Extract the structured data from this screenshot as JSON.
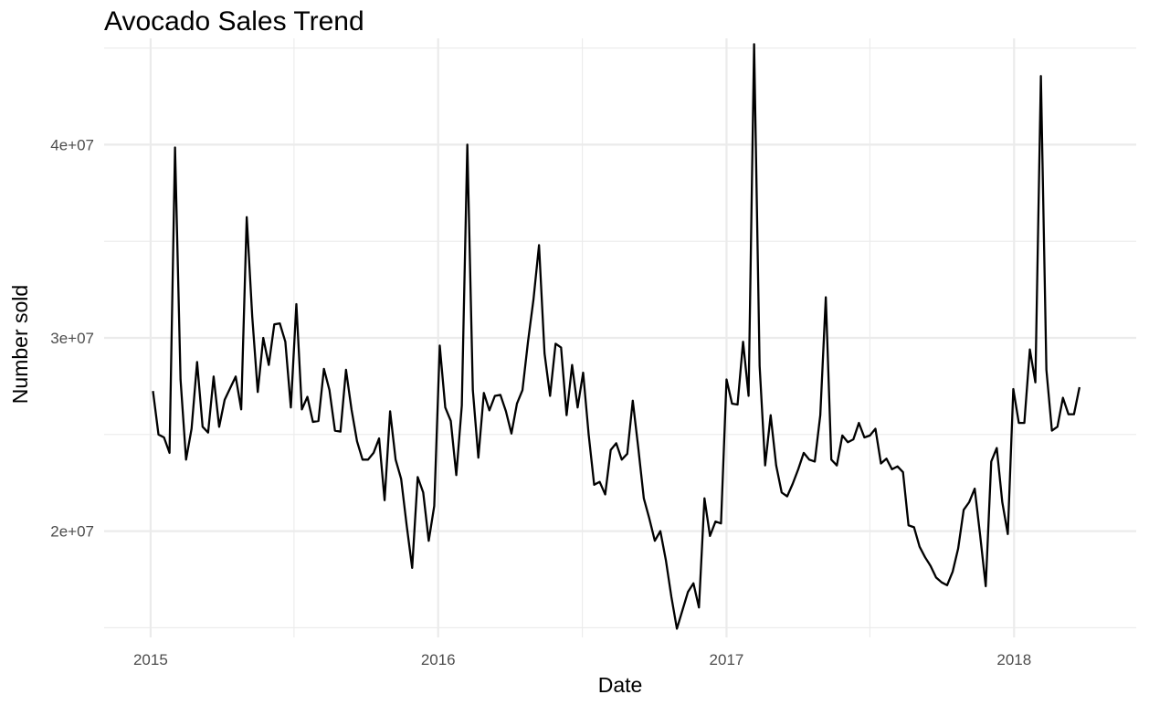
{
  "chart_data": {
    "type": "line",
    "title": "Avocado Sales Trend",
    "xlabel": "Date",
    "ylabel": "Number sold",
    "x_ticks": [
      "2015",
      "2016",
      "2017",
      "2018"
    ],
    "y_ticks": [
      "2e+07",
      "3e+07",
      "4e+07"
    ],
    "ylim": [
      14500000,
      45500000
    ],
    "xlim": [
      "2014-11-03",
      "2018-06-05"
    ],
    "grid": true,
    "line_color": "#000000",
    "grid_color": "#ebebeb",
    "series": [
      {
        "x": [
          "2015-01-04",
          "2015-01-11",
          "2015-01-18",
          "2015-01-25",
          "2015-02-01",
          "2015-02-08",
          "2015-02-15",
          "2015-02-22",
          "2015-03-01",
          "2015-03-08",
          "2015-03-15",
          "2015-03-22",
          "2015-03-29",
          "2015-04-05",
          "2015-04-12",
          "2015-04-19",
          "2015-04-26",
          "2015-05-03",
          "2015-05-10",
          "2015-05-17",
          "2015-05-24",
          "2015-05-31",
          "2015-06-07",
          "2015-06-14",
          "2015-06-21",
          "2015-06-28",
          "2015-07-05",
          "2015-07-12",
          "2015-07-19",
          "2015-07-26",
          "2015-08-02",
          "2015-08-09",
          "2015-08-16",
          "2015-08-23",
          "2015-08-30",
          "2015-09-06",
          "2015-09-13",
          "2015-09-20",
          "2015-09-27",
          "2015-10-04",
          "2015-10-11",
          "2015-10-18",
          "2015-10-25",
          "2015-11-01",
          "2015-11-08",
          "2015-11-15",
          "2015-11-22",
          "2015-11-29",
          "2015-12-06",
          "2015-12-13",
          "2015-12-20",
          "2015-12-27",
          "2016-01-03",
          "2016-01-10",
          "2016-01-17",
          "2016-01-24",
          "2016-01-31",
          "2016-02-07",
          "2016-02-14",
          "2016-02-21",
          "2016-02-28",
          "2016-03-06",
          "2016-03-13",
          "2016-03-20",
          "2016-03-27",
          "2016-04-03",
          "2016-04-10",
          "2016-04-17",
          "2016-04-24",
          "2016-05-01",
          "2016-05-08",
          "2016-05-15",
          "2016-05-22",
          "2016-05-29",
          "2016-06-05",
          "2016-06-12",
          "2016-06-19",
          "2016-06-26",
          "2016-07-03",
          "2016-07-10",
          "2016-07-17",
          "2016-07-24",
          "2016-07-31",
          "2016-08-07",
          "2016-08-14",
          "2016-08-21",
          "2016-08-28",
          "2016-09-04",
          "2016-09-11",
          "2016-09-18",
          "2016-09-25",
          "2016-10-02",
          "2016-10-09",
          "2016-10-16",
          "2016-10-23",
          "2016-10-30",
          "2016-11-06",
          "2016-11-13",
          "2016-11-20",
          "2016-11-27",
          "2016-12-04",
          "2016-12-11",
          "2016-12-18",
          "2016-12-25",
          "2017-01-01",
          "2017-01-08",
          "2017-01-15",
          "2017-01-22",
          "2017-01-29",
          "2017-02-05",
          "2017-02-12",
          "2017-02-19",
          "2017-02-26",
          "2017-03-05",
          "2017-03-12",
          "2017-03-19",
          "2017-03-26",
          "2017-04-02",
          "2017-04-09",
          "2017-04-16",
          "2017-04-23",
          "2017-04-30",
          "2017-05-07",
          "2017-05-14",
          "2017-05-21",
          "2017-05-28",
          "2017-06-04",
          "2017-06-11",
          "2017-06-18",
          "2017-06-25",
          "2017-07-02",
          "2017-07-09",
          "2017-07-16",
          "2017-07-23",
          "2017-07-30",
          "2017-08-06",
          "2017-08-13",
          "2017-08-20",
          "2017-08-27",
          "2017-09-03",
          "2017-09-10",
          "2017-09-17",
          "2017-09-24",
          "2017-10-01",
          "2017-10-08",
          "2017-10-15",
          "2017-10-22",
          "2017-10-29",
          "2017-11-05",
          "2017-11-12",
          "2017-11-19",
          "2017-11-26",
          "2017-12-03",
          "2017-12-10",
          "2017-12-17",
          "2017-12-24",
          "2017-12-31",
          "2018-01-07",
          "2018-01-14",
          "2018-01-21",
          "2018-01-28",
          "2018-02-04",
          "2018-02-11",
          "2018-02-18",
          "2018-02-25",
          "2018-03-04",
          "2018-03-11",
          "2018-03-18",
          "2018-03-25"
        ],
        "y": [
          27250000,
          25000000,
          24850000,
          24050000,
          39850000,
          27850000,
          23700000,
          25300000,
          28750000,
          25400000,
          25100000,
          28000000,
          25400000,
          26800000,
          27400000,
          28000000,
          26300000,
          36250000,
          31100000,
          27200000,
          30000000,
          28600000,
          30700000,
          30750000,
          29800000,
          26400000,
          31750000,
          26300000,
          26950000,
          25650000,
          25700000,
          28400000,
          27300000,
          25200000,
          25150000,
          28350000,
          26300000,
          24650000,
          23700000,
          23700000,
          24050000,
          24800000,
          21600000,
          26200000,
          23700000,
          22700000,
          20300000,
          18100000,
          22800000,
          22000000,
          19500000,
          21300000,
          29600000,
          26400000,
          25700000,
          22900000,
          26500000,
          40000000,
          27300000,
          23800000,
          27150000,
          26250000,
          27000000,
          27050000,
          26200000,
          25050000,
          26600000,
          27300000,
          29800000,
          32000000,
          34800000,
          29200000,
          27000000,
          29700000,
          29500000,
          26000000,
          28600000,
          26400000,
          28200000,
          25000000,
          22400000,
          22550000,
          21900000,
          24200000,
          24550000,
          23700000,
          24000000,
          26750000,
          24300000,
          21700000,
          20650000,
          19500000,
          20000000,
          18500000,
          16600000,
          14950000,
          15900000,
          16850000,
          17300000,
          16050000,
          21700000,
          19750000,
          20500000,
          20400000,
          27850000,
          26600000,
          26550000,
          29800000,
          27000000,
          45200000,
          28550000,
          23400000,
          26000000,
          23400000,
          22000000,
          21800000,
          22450000,
          23200000,
          24050000,
          23700000,
          23600000,
          26000000,
          32100000,
          23700000,
          23400000,
          24950000,
          24600000,
          24750000,
          25600000,
          24850000,
          24950000,
          25300000,
          23500000,
          23750000,
          23200000,
          23350000,
          23050000,
          20300000,
          20200000,
          19200000,
          18650000,
          18200000,
          17600000,
          17350000,
          17200000,
          17900000,
          19100000,
          21100000,
          21500000,
          22200000,
          19750000,
          17150000,
          23600000,
          24300000,
          21500000,
          19850000,
          27350000,
          25600000,
          25600000,
          29400000,
          27700000,
          43550000,
          28350000,
          25200000,
          25400000,
          26900000,
          26050000,
          26050000,
          27450000
        ]
      }
    ]
  }
}
